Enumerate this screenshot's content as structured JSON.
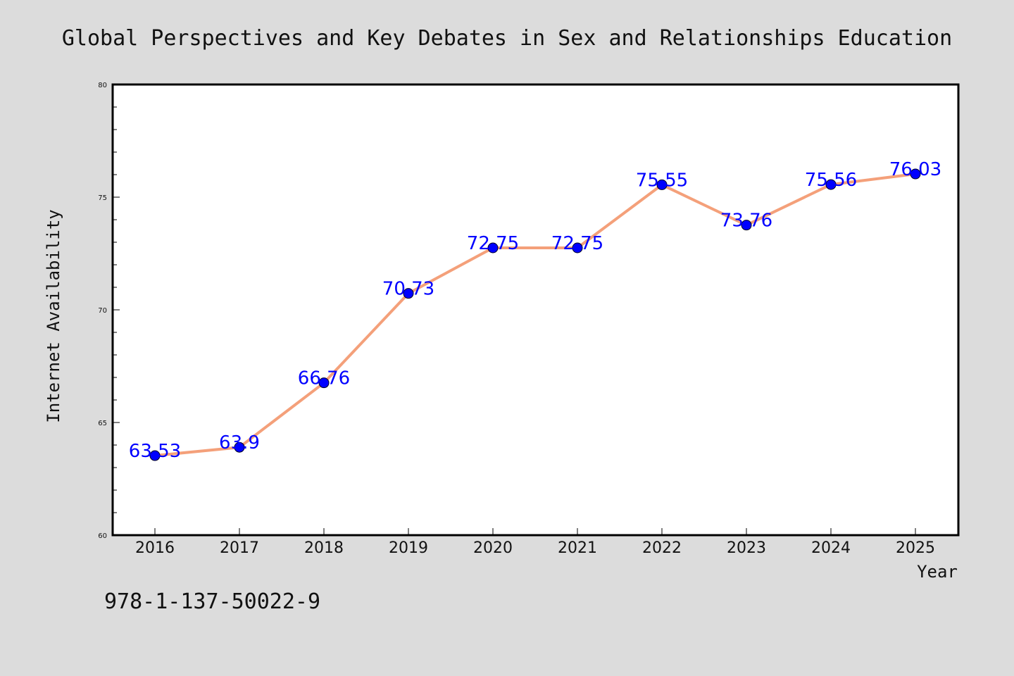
{
  "chart_data": {
    "type": "line",
    "title": "Global Perspectives and Key Debates in Sex and Relationships Education",
    "xlabel": "Year",
    "ylabel": "Internet Availability",
    "categories": [
      "2016",
      "2017",
      "2018",
      "2019",
      "2020",
      "2021",
      "2022",
      "2023",
      "2024",
      "2025"
    ],
    "series": [
      {
        "values": [
          63.53,
          63.9,
          66.76,
          70.73,
          72.75,
          72.75,
          75.55,
          73.76,
          75.56,
          76.03
        ],
        "labels": [
          "63.53",
          "63.9",
          "66.76",
          "70.73",
          "72.75",
          "72.75",
          "75.55",
          "73.76",
          "75.56",
          "76.03"
        ]
      }
    ],
    "ylim": [
      60,
      80
    ],
    "yticks": [
      "60",
      "65",
      "70",
      "75",
      "80"
    ],
    "grid": false,
    "line_color": "#f4a07a",
    "marker_color": "#0000ff",
    "label_color": "#0000ff",
    "background_color": "#dcdcdc",
    "plot_background": "#ffffff"
  },
  "footer": {
    "isbn": "978-1-137-50022-9"
  }
}
